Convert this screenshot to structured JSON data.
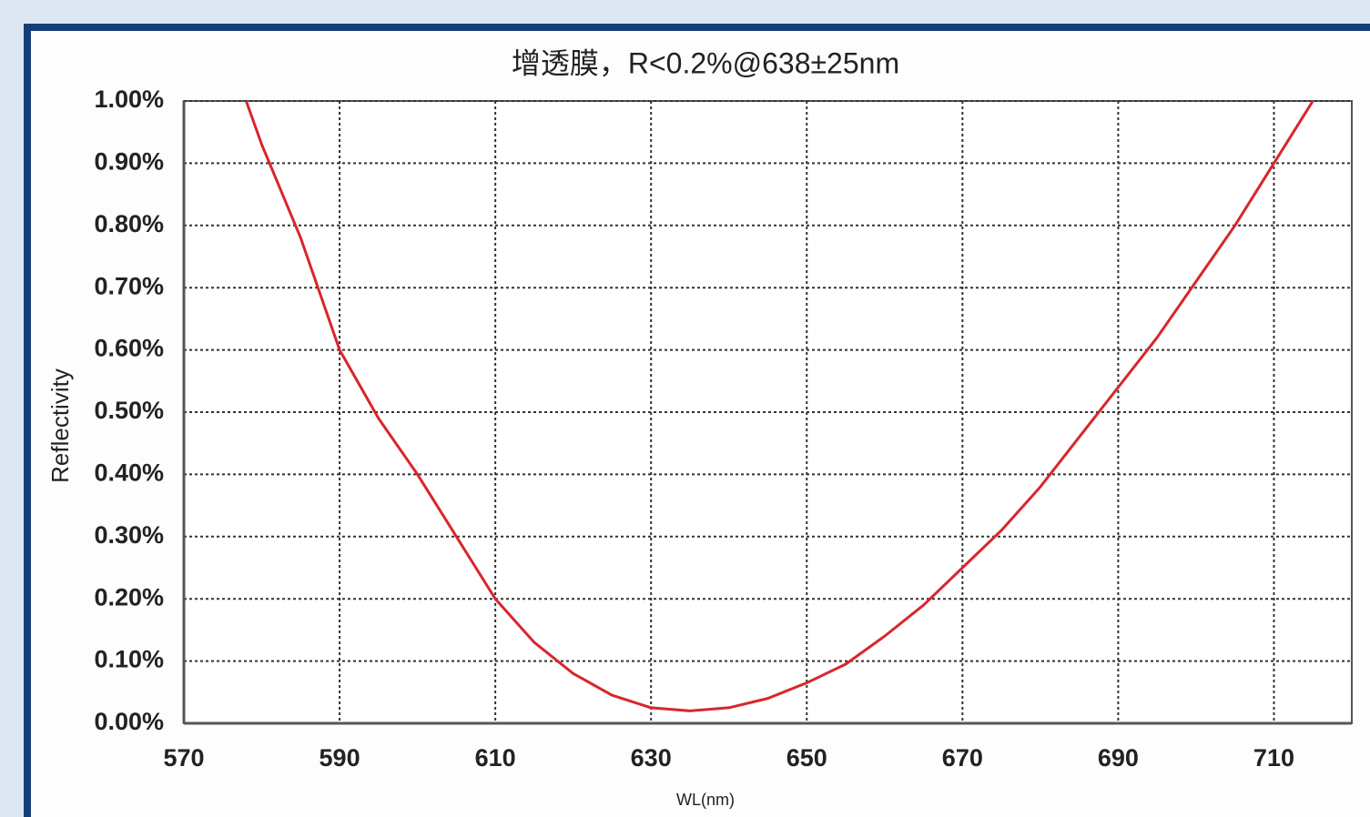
{
  "chart_data": {
    "type": "line",
    "title": "增透膜，R<0.2%@638±25nm",
    "x_label": "WL(nm)",
    "y_label": "Reflectivity",
    "x": [
      578,
      580,
      585,
      590,
      595,
      600,
      605,
      610,
      615,
      620,
      625,
      630,
      635,
      640,
      645,
      650,
      655,
      660,
      665,
      670,
      675,
      680,
      685,
      690,
      695,
      700,
      705,
      710,
      714,
      715
    ],
    "values": [
      1.0,
      0.93,
      0.78,
      0.6,
      0.49,
      0.4,
      0.3,
      0.2,
      0.13,
      0.08,
      0.045,
      0.025,
      0.02,
      0.025,
      0.04,
      0.065,
      0.095,
      0.14,
      0.19,
      0.25,
      0.31,
      0.38,
      0.46,
      0.54,
      0.62,
      0.71,
      0.8,
      0.9,
      0.98,
      1.0
    ],
    "color": "#d8262b",
    "xlim": [
      570,
      720
    ],
    "xticks": [
      570,
      590,
      610,
      630,
      650,
      670,
      690,
      710
    ],
    "ylim": [
      0,
      1.0
    ],
    "yticks": [
      {
        "value": 0,
        "label": "0.00%"
      },
      {
        "value": 0.1,
        "label": "0.10%"
      },
      {
        "value": 0.2,
        "label": "0.20%"
      },
      {
        "value": 0.3,
        "label": "0.30%"
      },
      {
        "value": 0.4,
        "label": "0.40%"
      },
      {
        "value": 0.5,
        "label": "0.50%"
      },
      {
        "value": 0.6,
        "label": "0.60%"
      },
      {
        "value": 0.7,
        "label": "0.70%"
      },
      {
        "value": 0.8,
        "label": "0.80%"
      },
      {
        "value": 0.9,
        "label": "0.90%"
      },
      {
        "value": 1.0,
        "label": "1.00%"
      }
    ],
    "grid": true
  }
}
